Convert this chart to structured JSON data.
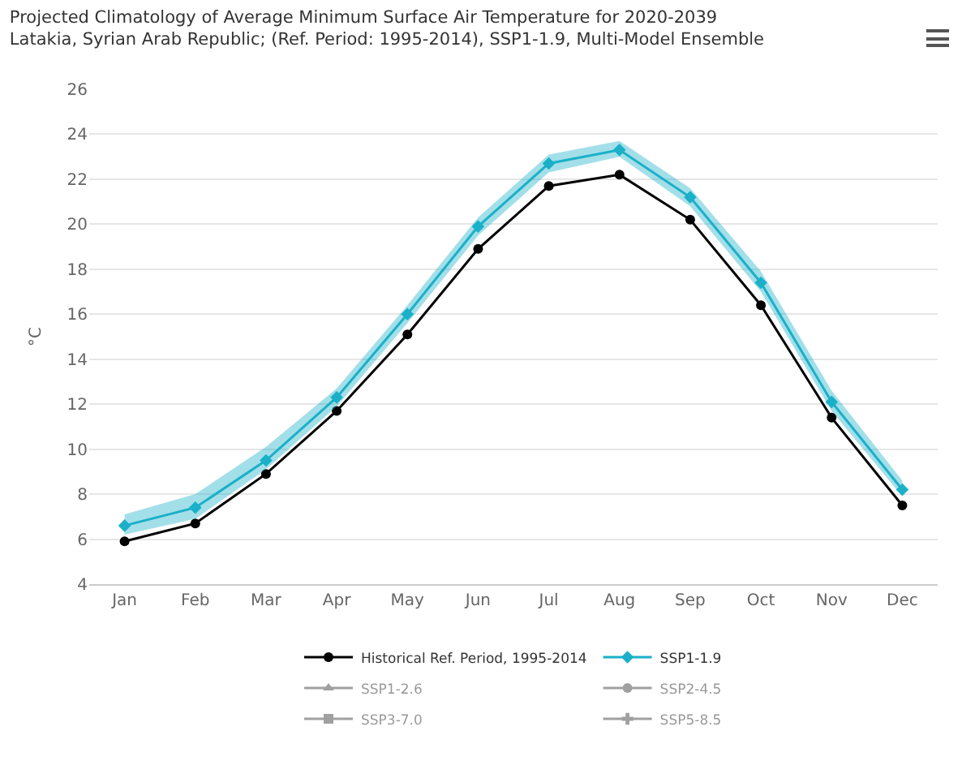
{
  "chart_data": {
    "type": "line",
    "title": "Projected Climatology of Average Minimum Surface Air Temperature for 2020-2039\nLatakia, Syrian Arab Republic; (Ref. Period: 1995-2014), SSP1-1.9, Multi-Model Ensemble",
    "ylabel": "°C",
    "categories": [
      "Jan",
      "Feb",
      "Mar",
      "Apr",
      "May",
      "Jun",
      "Jul",
      "Aug",
      "Sep",
      "Oct",
      "Nov",
      "Dec"
    ],
    "series": [
      {
        "name": "Historical Ref. Period, 1995-2014",
        "color": "#000000",
        "marker": "circle",
        "values": [
          5.9,
          6.7,
          8.9,
          11.7,
          15.1,
          18.9,
          21.7,
          22.2,
          20.2,
          16.4,
          11.4,
          7.5
        ]
      },
      {
        "name": "SSP1-1.9",
        "color": "#1ab0c8",
        "marker": "diamond",
        "values": [
          6.6,
          7.4,
          9.5,
          12.3,
          16.0,
          19.9,
          22.7,
          23.3,
          21.2,
          17.4,
          12.1,
          8.2
        ],
        "lower": [
          6.2,
          6.9,
          9.1,
          11.9,
          15.6,
          19.5,
          22.3,
          23.0,
          20.8,
          17.0,
          11.7,
          7.9
        ],
        "upper": [
          7.1,
          8.0,
          10.1,
          12.7,
          16.4,
          20.3,
          23.1,
          23.7,
          21.6,
          17.9,
          12.6,
          8.6
        ]
      },
      {
        "name": "SSP1-2.6",
        "color": "#444444",
        "marker": "triangle",
        "values": [
          null,
          null,
          null,
          null,
          null,
          null,
          null,
          null,
          null,
          null,
          null,
          null
        ]
      },
      {
        "name": "SSP2-4.5",
        "color": "#444444",
        "marker": "circle",
        "values": [
          null,
          null,
          null,
          null,
          null,
          null,
          null,
          null,
          null,
          null,
          null,
          null
        ]
      },
      {
        "name": "SSP3-7.0",
        "color": "#444444",
        "marker": "square",
        "values": [
          null,
          null,
          null,
          null,
          null,
          null,
          null,
          null,
          null,
          null,
          null,
          null
        ]
      },
      {
        "name": "SSP5-8.5",
        "color": "#444444",
        "marker": "cross",
        "values": [
          null,
          null,
          null,
          null,
          null,
          null,
          null,
          null,
          null,
          null,
          null,
          null
        ]
      }
    ],
    "ylim": [
      4,
      26
    ],
    "yticks": [
      4,
      6,
      8,
      10,
      12,
      14,
      16,
      18,
      20,
      22,
      24,
      26
    ],
    "grid": "y",
    "legend": "bottom",
    "line_style": "solid"
  }
}
